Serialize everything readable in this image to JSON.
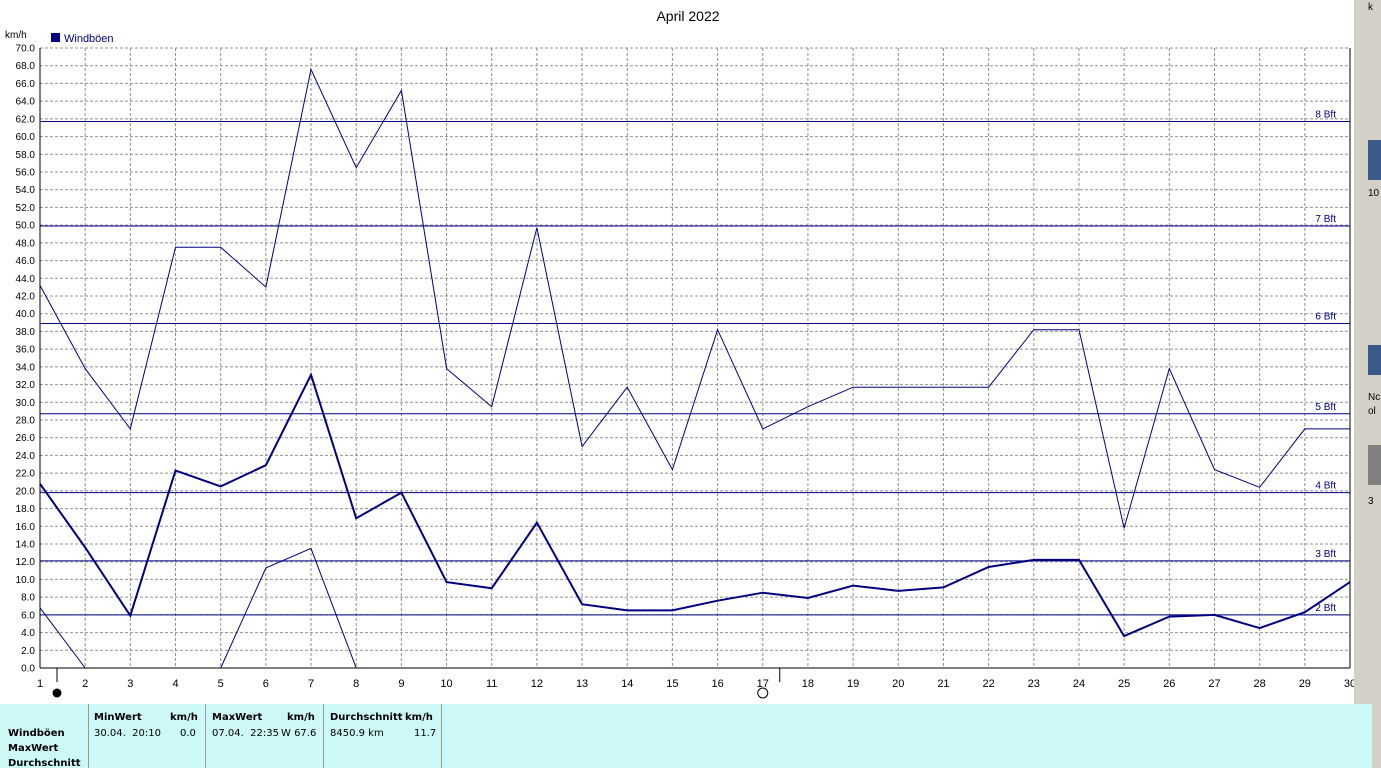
{
  "chart_data": {
    "type": "line",
    "title": "April 2022",
    "ylabel": "km/h",
    "ylim": [
      0,
      70
    ],
    "y_step": 2,
    "x": [
      1,
      2,
      3,
      4,
      5,
      6,
      7,
      8,
      9,
      10,
      11,
      12,
      13,
      14,
      15,
      16,
      17,
      18,
      19,
      20,
      21,
      22,
      23,
      24,
      25,
      26,
      27,
      28,
      29,
      30
    ],
    "grid": true,
    "legend": [
      {
        "name": "Windböen",
        "color": "#000080",
        "position": "top-left"
      }
    ],
    "series": [
      {
        "name": "Windböen",
        "role": "average",
        "values": [
          20.8,
          13.6,
          5.9,
          22.3,
          20.5,
          22.9,
          33.1,
          16.9,
          19.8,
          9.7,
          9.0,
          16.4,
          7.2,
          6.5,
          6.5,
          7.6,
          8.5,
          7.9,
          9.3,
          8.7,
          9.1,
          11.4,
          12.2,
          12.2,
          3.6,
          5.8,
          6.0,
          4.5,
          6.3,
          9.7
        ]
      },
      {
        "role": "max",
        "values": [
          43.2,
          33.8,
          27.0,
          47.5,
          47.5,
          43.0,
          67.6,
          56.5,
          65.2,
          33.8,
          29.5,
          49.7,
          25.0,
          31.7,
          22.4,
          38.2,
          27.0,
          29.5,
          31.7,
          31.7,
          31.7,
          31.7,
          38.2,
          38.2,
          15.8,
          33.8,
          22.4,
          20.4,
          27.0,
          27.0
        ]
      },
      {
        "role": "min",
        "values": [
          6.8,
          0.0,
          null,
          null,
          0.0,
          11.3,
          13.5,
          0.0,
          null,
          null,
          null,
          null,
          null,
          null,
          null,
          null,
          null,
          null,
          null,
          null,
          null,
          null,
          null,
          null,
          null,
          null,
          null,
          null,
          null,
          null
        ]
      }
    ],
    "reference_lines": [
      {
        "label": "2 Bft",
        "y": 6.0
      },
      {
        "label": "3 Bft",
        "y": 12.1
      },
      {
        "label": "4 Bft",
        "y": 19.8
      },
      {
        "label": "5 Bft",
        "y": 28.7
      },
      {
        "label": "6 Bft",
        "y": 38.9
      },
      {
        "label": "7 Bft",
        "y": 49.9
      },
      {
        "label": "8 Bft",
        "y": 61.7
      }
    ],
    "moon_phases": [
      {
        "day": 1,
        "symbol": "●",
        "phase": "new"
      },
      {
        "day": 17,
        "symbol": "○",
        "phase": "full"
      }
    ]
  },
  "colors": {
    "series": "#000080",
    "reference": "#000080",
    "grid": "#909090",
    "stats_bg": "#ccf8f8"
  },
  "stats": {
    "row_labels": [
      "Windböen",
      "MaxWert",
      "Durchschnitt"
    ],
    "min_header": "MinWert",
    "max_header": "MaxWert",
    "avg_header": "Durchschnitt",
    "unit_header": "km/h",
    "min_time": "30.04.  20:10",
    "min_value": "0.0",
    "max_time": "07.04.  22:35",
    "max_value": "W 67.6",
    "avg_distance": "8450.9 km",
    "avg_value": "11.7"
  },
  "side_strip": {
    "texts": [
      "k",
      "10",
      "Nc",
      "ol",
      "3"
    ]
  }
}
